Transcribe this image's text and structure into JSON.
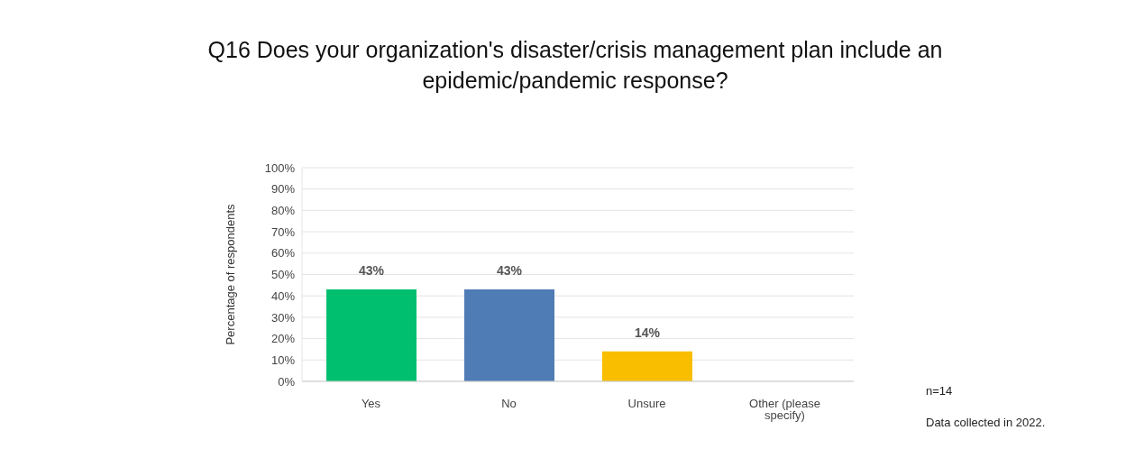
{
  "chart_data": {
    "type": "bar",
    "title": "Q16 Does your organization's disaster/crisis management plan include an epidemic/pandemic response?",
    "ylabel": "Percentage of respondents",
    "categories": [
      "Yes",
      "No",
      "Unsure",
      "Other (please specify)"
    ],
    "values": [
      43,
      43,
      14,
      0
    ],
    "colors": [
      "#00bf6f",
      "#507cb6",
      "#f9be00",
      "#a0a0a0"
    ],
    "value_labels": [
      "43%",
      "43%",
      "14%",
      null
    ],
    "ylim": [
      0,
      100
    ],
    "yticks": [
      {
        "value": 0,
        "label": "0%"
      },
      {
        "value": 10,
        "label": "10%"
      },
      {
        "value": 20,
        "label": "20%"
      },
      {
        "value": 30,
        "label": "30%"
      },
      {
        "value": 40,
        "label": "40%"
      },
      {
        "value": 50,
        "label": "50%"
      },
      {
        "value": 60,
        "label": "60%"
      },
      {
        "value": 70,
        "label": "70%"
      },
      {
        "value": 80,
        "label": "80%"
      },
      {
        "value": 90,
        "label": "90%"
      },
      {
        "value": 100,
        "label": "100%"
      }
    ],
    "grid": "y",
    "legend": false,
    "annotations": [
      "n=14",
      "Data collected in 2022."
    ]
  }
}
